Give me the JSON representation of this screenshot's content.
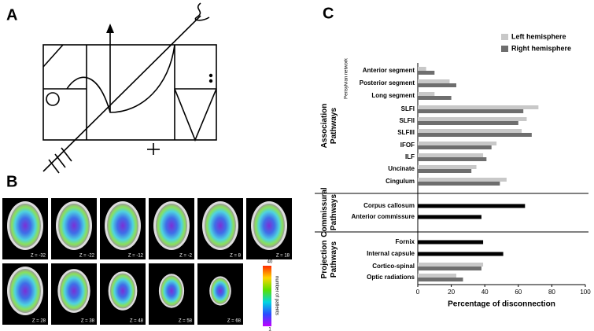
{
  "panel_labels": [
    "A",
    "B",
    "C"
  ],
  "brain_slices": {
    "labels": [
      "Z = -32",
      "Z = -22",
      "Z = -12",
      "Z = -2",
      "Z = 8",
      "Z = 18",
      "Z = 28",
      "Z = 38",
      "Z = 48",
      "Z = 58",
      "Z = 68"
    ],
    "colorbar": {
      "max": "40",
      "min": "1",
      "label": "number of patients"
    }
  },
  "chart_data": {
    "type": "hbar",
    "categories": [
      "Anterior segment",
      "Posterior segment",
      "Long segment",
      "SLFI",
      "SLFII",
      "SLFIII",
      "IFOF",
      "ILF",
      "Uncinate",
      "Cingulum",
      "Corpus callosum",
      "Anterior commissure",
      "Fornix",
      "Internal capsule",
      "Cortico-spinal",
      "Optic radiations"
    ],
    "series": [
      {
        "name": "Left hemisphere",
        "color": "#c8c8c8",
        "values": [
          5,
          19,
          10,
          72,
          65,
          62,
          47,
          39,
          35,
          53,
          null,
          null,
          null,
          null,
          39,
          23
        ]
      },
      {
        "name": "Right hemisphere",
        "color": "#6e6e6e",
        "values": [
          10,
          23,
          20,
          63,
          60,
          68,
          44,
          41,
          32,
          49,
          null,
          null,
          null,
          null,
          38,
          27
        ]
      },
      {
        "color": "#000000",
        "values": [
          null,
          null,
          null,
          null,
          null,
          null,
          null,
          null,
          null,
          null,
          64,
          38,
          39,
          51,
          null,
          null
        ]
      }
    ],
    "groups": [
      "Association Pathways",
      "Commissural Pathways",
      "Projection Pathways"
    ],
    "subgroup": "Perisylvian network",
    "xlabel": "Percentage of disconnection",
    "xlim": [
      0,
      100
    ],
    "xticks": [
      0,
      20,
      40,
      60,
      80,
      100
    ],
    "legend": "top-right"
  }
}
